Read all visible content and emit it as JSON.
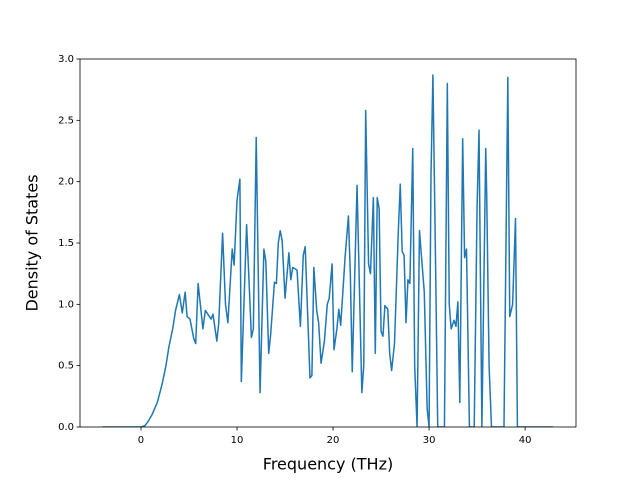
{
  "chart_data": {
    "type": "line",
    "xlabel": "Frequency (THz)",
    "ylabel": "Density of States",
    "color": "#1f77b4",
    "x": [
      -4,
      0,
      0.4,
      0.7,
      1.15,
      1.7,
      2.2,
      2.6,
      2.9,
      3.3,
      3.6,
      4.0,
      4.3,
      4.6,
      4.8,
      5.1,
      5.5,
      5.7,
      5.95,
      6.45,
      6.7,
      7.3,
      7.5,
      7.9,
      8.1,
      8.5,
      8.8,
      9.05,
      9.5,
      9.7,
      10.0,
      10.3,
      10.45,
      11.0,
      11.5,
      11.7,
      12.0,
      12.4,
      12.8,
      13.0,
      13.3,
      13.5,
      13.9,
      14.1,
      14.3,
      14.5,
      14.7,
      15.0,
      15.4,
      15.6,
      15.8,
      16.25,
      16.6,
      16.9,
      17.1,
      17.6,
      17.8,
      18.0,
      18.3,
      18.5,
      18.75,
      19.1,
      19.4,
      19.6,
      19.9,
      20.1,
      20.4,
      20.6,
      20.8,
      21.25,
      21.6,
      21.8,
      22.0,
      22.5,
      23.0,
      23.2,
      23.4,
      23.7,
      23.9,
      24.2,
      24.4,
      24.6,
      24.8,
      25.0,
      25.2,
      25.4,
      25.7,
      25.9,
      26.1,
      26.4,
      26.8,
      27.0,
      27.2,
      27.4,
      27.6,
      27.8,
      28.0,
      28.3,
      28.5,
      28.75,
      29.0,
      29.2,
      29.5,
      29.8,
      30.0,
      30.2,
      30.4,
      30.7,
      30.9,
      31.6,
      31.9,
      32.1,
      32.3,
      32.6,
      32.8,
      33.0,
      33.2,
      33.5,
      33.7,
      33.9,
      34.2,
      34.7,
      35.0,
      35.2,
      35.5,
      35.9,
      36.0,
      36.25,
      36.5,
      37.8,
      38.2,
      38.4,
      38.7,
      39.0,
      39.2,
      42.9
    ],
    "values": [
      0,
      0,
      0.01,
      0.04,
      0.1,
      0.2,
      0.35,
      0.5,
      0.65,
      0.8,
      0.95,
      1.08,
      0.93,
      1.1,
      0.9,
      0.88,
      0.72,
      0.68,
      1.17,
      0.8,
      0.95,
      0.88,
      0.92,
      0.7,
      0.85,
      1.58,
      1.0,
      0.85,
      1.45,
      1.32,
      1.85,
      2.02,
      0.37,
      1.65,
      0.73,
      0.8,
      2.36,
      0.28,
      1.45,
      1.35,
      0.6,
      0.75,
      1.18,
      1.17,
      1.5,
      1.6,
      1.52,
      1.05,
      1.42,
      1.2,
      1.3,
      1.28,
      0.82,
      1.4,
      1.47,
      0.4,
      0.42,
      1.3,
      0.95,
      0.85,
      0.52,
      0.7,
      1.0,
      1.05,
      1.33,
      0.63,
      0.8,
      0.96,
      0.83,
      1.38,
      1.72,
      1.25,
      0.45,
      1.97,
      0.28,
      0.5,
      2.58,
      1.33,
      1.25,
      1.87,
      0.6,
      1.87,
      1.78,
      0.78,
      0.74,
      0.99,
      0.96,
      0.6,
      0.46,
      0.68,
      1.6,
      1.98,
      1.43,
      1.4,
      0.85,
      1.2,
      1.17,
      2.27,
      0.5,
      0,
      1.6,
      1.4,
      1.1,
      0.15,
      0,
      2.05,
      2.87,
      1.2,
      0,
      0,
      2.8,
      1.0,
      0.8,
      0.87,
      0.82,
      1.02,
      0.2,
      2.35,
      1.38,
      1.45,
      0,
      0,
      1.8,
      2.42,
      0,
      2.27,
      1.9,
      0.5,
      0,
      0,
      2.85,
      0.9,
      1.0,
      1.7,
      0,
      0
    ],
    "xlim": [
      -6.35,
      45.3
    ],
    "ylim": [
      0,
      3
    ],
    "xticks": [
      0,
      10,
      20,
      30,
      40
    ],
    "yticks": [
      {
        "value": 0,
        "label": "0.0"
      },
      0.5,
      {
        "value": 1,
        "label": "1.0"
      },
      1.5,
      {
        "value": 2,
        "label": "2.0"
      },
      2.5,
      {
        "value": 3,
        "label": "3.0"
      }
    ]
  }
}
